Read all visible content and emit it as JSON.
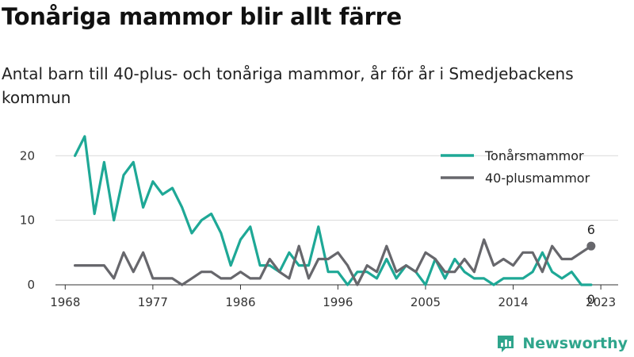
{
  "chart_data": {
    "type": "line",
    "title": "Tonåriga mammor blir allt färre",
    "subtitle": "Antal barn till 40-plus- och tonåriga mammor, år för år i Smedjebackens kommun",
    "xlabel": "",
    "ylabel": "",
    "x": [
      1969,
      1970,
      1971,
      1972,
      1973,
      1974,
      1975,
      1976,
      1977,
      1978,
      1979,
      1980,
      1981,
      1982,
      1983,
      1984,
      1985,
      1986,
      1987,
      1988,
      1989,
      1990,
      1991,
      1992,
      1993,
      1994,
      1995,
      1996,
      1997,
      1998,
      1999,
      2000,
      2001,
      2002,
      2003,
      2004,
      2005,
      2006,
      2007,
      2008,
      2009,
      2010,
      2011,
      2012,
      2013,
      2014,
      2015,
      2016,
      2017,
      2018,
      2019,
      2020,
      2021,
      2022
    ],
    "xlim": [
      1967,
      2022.5
    ],
    "xticks": [
      "1968",
      "1977",
      "1986",
      "1996",
      "2005",
      "2014",
      "2023"
    ],
    "xtick_values": [
      1968,
      1977,
      1986,
      1996,
      2005,
      2014,
      2023
    ],
    "ylim": [
      0,
      22
    ],
    "yticks": [
      "0",
      "10",
      "20"
    ],
    "ytick_values": [
      0,
      10,
      20
    ],
    "grid": true,
    "legend_position": "top-right",
    "series": [
      {
        "name": "Tonårsmammor",
        "color": "#1ea896",
        "values": [
          20,
          23,
          11,
          19,
          10,
          17,
          19,
          12,
          16,
          14,
          15,
          12,
          8,
          10,
          11,
          8,
          3,
          7,
          9,
          3,
          3,
          2,
          5,
          3,
          3,
          9,
          2,
          2,
          0,
          2,
          2,
          1,
          4,
          1,
          3,
          2,
          0,
          4,
          1,
          4,
          2,
          1,
          1,
          0,
          1,
          1,
          1,
          2,
          5,
          2,
          1,
          2,
          0,
          0
        ]
      },
      {
        "name": "40-plusmammor",
        "color": "#67676c",
        "values": [
          3,
          3,
          3,
          3,
          1,
          5,
          2,
          5,
          1,
          1,
          1,
          0,
          1,
          2,
          2,
          1,
          1,
          2,
          1,
          1,
          4,
          2,
          1,
          6,
          1,
          4,
          4,
          5,
          3,
          0,
          3,
          2,
          6,
          2,
          3,
          2,
          5,
          4,
          2,
          2,
          4,
          2,
          7,
          3,
          4,
          3,
          5,
          5,
          2,
          6,
          4,
          4,
          5,
          6
        ]
      }
    ],
    "annotations": [
      {
        "series": "40-plusmammor",
        "x": 2022,
        "label": "6"
      },
      {
        "series": "Tonårsmammor",
        "x": 2022,
        "label": "0"
      }
    ]
  },
  "brand": {
    "name": "Newsworthy",
    "color": "#2fa58c"
  }
}
